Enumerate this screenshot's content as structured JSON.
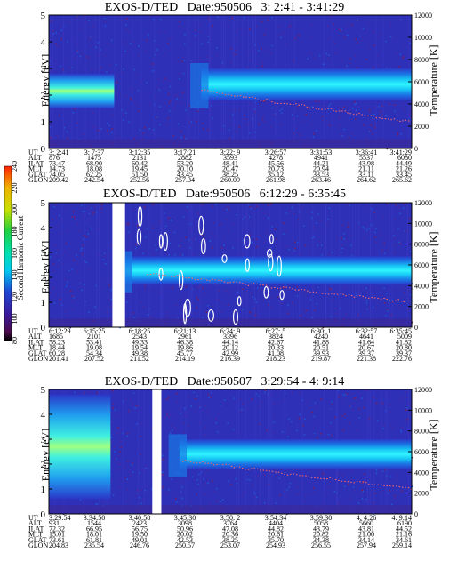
{
  "chart_data": [
    {
      "type": "heatmap",
      "title": "EXOS-D/TED   Date:950506   3: 2:41 - 3:41:29",
      "ylabel": "Energy [eV]",
      "y2label": "Temperature [K]",
      "ylim": [
        0,
        5
      ],
      "y2lim": [
        0,
        12000
      ],
      "yticks": [
        "0",
        "1",
        "2",
        "3",
        "4",
        "5"
      ],
      "y2ticks": [
        "0",
        "2000",
        "4000",
        "6000",
        "8000",
        "10000",
        "12000"
      ],
      "orbit_rows": [
        {
          "label": "UT",
          "values": [
            "3: 2:41",
            "3: 7:37",
            "3:12:35",
            "3:17:21",
            "3:22: 9",
            "3:26:57",
            "3:31:53",
            "3:36:41",
            "3:41:29"
          ]
        },
        {
          "label": "ALT",
          "values": [
            "876",
            "1475",
            "2131",
            "2882",
            "3593",
            "4278",
            "4941",
            "5537",
            "6080"
          ]
        },
        {
          "label": "ILAT",
          "values": [
            "73.47",
            "68.90",
            "60.42",
            "53.20",
            "48.41",
            "45.56",
            "44.21",
            "43.98",
            "44.49"
          ]
        },
        {
          "label": "MLT",
          "values": [
            "14.73",
            "18.08",
            "19.45",
            "20.10",
            "20.47",
            "20.73",
            "20.94",
            "21.11",
            "21.26"
          ]
        },
        {
          "label": "GLAT",
          "values": [
            "74.05",
            "62.25",
            "51.50",
            "43.45",
            "38.25",
            "35.12",
            "33.53",
            "33.11",
            "33.45"
          ]
        },
        {
          "label": "GLON",
          "values": [
            "209.42",
            "242.54",
            "252.56",
            "257.34",
            "260.09",
            "261.98",
            "263.46",
            "264.62",
            "265.62"
          ]
        }
      ]
    },
    {
      "type": "heatmap",
      "title": "EXOS-D/TED   Date:950506   6:12:29 - 6:35:45",
      "ylabel": "Energy [eV]",
      "y2label": "Temperature [K]",
      "ylim": [
        0,
        5
      ],
      "y2lim": [
        0,
        12000
      ],
      "yticks": [
        "0",
        "1",
        "2",
        "3",
        "4",
        "5"
      ],
      "y2ticks": [
        "0",
        "2000",
        "4000",
        "6000",
        "8000",
        "10000",
        "12000"
      ],
      "orbit_rows": [
        {
          "label": "UT",
          "values": [
            "6:12:29",
            "6:15:25",
            "6:18:25",
            "6:21:13",
            "6:24: 9",
            "6:27: 5",
            "6:30: 1",
            "6:32:57",
            "6:35:45"
          ]
        },
        {
          "label": "ALT",
          "values": [
            "1685",
            "2101",
            "2543",
            "2961",
            "3396",
            "3824",
            "4240",
            "4641",
            "5009"
          ]
        },
        {
          "label": "ILAT",
          "values": [
            "58.23",
            "53.41",
            "49.33",
            "46.38",
            "44.14",
            "42.67",
            "41.88",
            "41.64",
            "41.82"
          ]
        },
        {
          "label": "MLT",
          "values": [
            "18.44",
            "19.08",
            "19.54",
            "19.86",
            "20.12",
            "20.33",
            "20.51",
            "20.67",
            "20.80"
          ]
        },
        {
          "label": "GLAT",
          "values": [
            "60.28",
            "54.34",
            "49.38",
            "45.77",
            "42.99",
            "41.08",
            "39.93",
            "39.37",
            "39.37"
          ]
        },
        {
          "label": "GLON",
          "values": [
            "201.41",
            "207.52",
            "211.52",
            "214.19",
            "216.39",
            "218.23",
            "219.87",
            "221.38",
            "222.76"
          ]
        }
      ]
    },
    {
      "type": "heatmap",
      "title": "EXOS-D/TED   Date:950507   3:29:54 - 4: 9:14",
      "ylabel": "Energy [eV]",
      "y2label": "Temperature [K]",
      "ylim": [
        0,
        5
      ],
      "y2lim": [
        0,
        12000
      ],
      "yticks": [
        "0",
        "1",
        "2",
        "3",
        "4",
        "5"
      ],
      "y2ticks": [
        "0",
        "2000",
        "4000",
        "6000",
        "8000",
        "10000",
        "12000"
      ],
      "orbit_rows": [
        {
          "label": "UT",
          "values": [
            "3:29:54",
            "3:34:50",
            "3:40:58",
            "3:45:30",
            "3:50: 2",
            "3:54:34",
            "3:59:30",
            "4: 4:26",
            "4: 9:14"
          ]
        },
        {
          "label": "ALT",
          "values": [
            "931",
            "1544",
            "2423",
            "3098",
            "3764",
            "4404",
            "5058",
            "5660",
            "6190"
          ]
        },
        {
          "label": "ILAT",
          "values": [
            "72.32",
            "66.95",
            "56.75",
            "50.96",
            "47.08",
            "44.82",
            "43.79",
            "43.81",
            "44.52"
          ]
        },
        {
          "label": "MLT",
          "values": [
            "15.01",
            "18.01",
            "19.50",
            "20.02",
            "20.36",
            "20.61",
            "20.82",
            "21.00",
            "21.16"
          ]
        },
        {
          "label": "GLAT",
          "values": [
            "73.61",
            "61.81",
            "49.01",
            "42.53",
            "38.25",
            "35.70",
            "34.38",
            "34.14",
            "34.61"
          ]
        },
        {
          "label": "GLON",
          "values": [
            "204.83",
            "235.54",
            "246.76",
            "250.57",
            "253.07",
            "254.93",
            "256.55",
            "257.94",
            "259.14"
          ]
        }
      ]
    }
  ],
  "colorbar": {
    "label": "Second Harmonic Current",
    "ticks": [
      "80",
      "100",
      "120",
      "140",
      "160",
      "180",
      "200",
      "220",
      "240"
    ],
    "colors": [
      "#000000",
      "#5a0a5a",
      "#2a1a9a",
      "#1e46d2",
      "#00c8f0",
      "#00e0b0",
      "#20d040",
      "#c8e000",
      "#f0c000",
      "#ff3000"
    ]
  }
}
